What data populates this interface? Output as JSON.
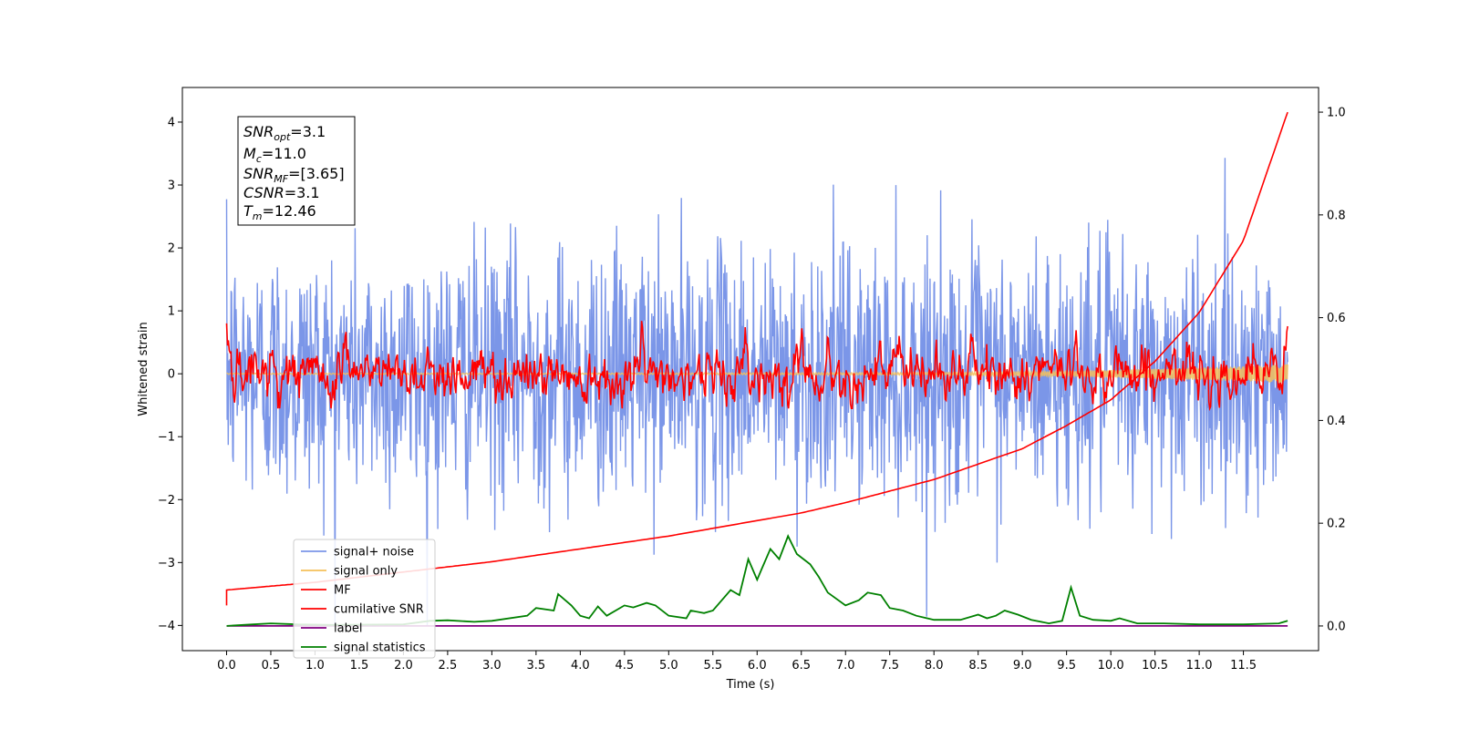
{
  "chart_data": {
    "type": "line",
    "xlabel": "Time (s)",
    "ylabel": "Whitened strain",
    "xlim": [
      -0.5,
      12.35
    ],
    "ylim": [
      -4.4,
      4.55
    ],
    "y2lim": [
      -0.048,
      1.048
    ],
    "x_ticks": [
      "0.0",
      "0.5",
      "1.0",
      "1.5",
      "2.0",
      "2.5",
      "3.0",
      "3.5",
      "4.0",
      "4.5",
      "5.0",
      "5.5",
      "6.0",
      "6.5",
      "7.0",
      "7.5",
      "8.0",
      "8.5",
      "9.0",
      "9.5",
      "10.0",
      "10.5",
      "11.0",
      "11.5"
    ],
    "y_ticks": [
      "4",
      "3",
      "2",
      "1",
      "0",
      "−1",
      "−2",
      "−3",
      "−4"
    ],
    "y2_ticks": [
      "1.0",
      "0.8",
      "0.6",
      "0.4",
      "0.2",
      "0.0"
    ],
    "info_box": {
      "snr_opt": {
        "sym": "SNR",
        "sub": "opt",
        "val": "=3.1"
      },
      "mc": {
        "sym": "M",
        "sub": "c",
        "val": "=11.0"
      },
      "snr_mf": {
        "sym": "SNR",
        "sub": "MF",
        "val": "=[3.65]"
      },
      "csnr": {
        "sym": "CSNR",
        "val": "=3.1"
      },
      "tm": {
        "sym": "T",
        "sub": "m",
        "val": "=12.46"
      }
    },
    "legend": {
      "placement": "lower-left",
      "entries": [
        {
          "label": "signal+ noise",
          "color": "#7b96e8"
        },
        {
          "label": "signal only",
          "color": "#f5c15a"
        },
        {
          "label": "MF",
          "color": "#ff0000"
        },
        {
          "label": "cumilative SNR",
          "color": "#ff0000"
        },
        {
          "label": "label",
          "color": "#800080"
        },
        {
          "label": "signal statistics",
          "color": "#008000"
        }
      ]
    },
    "series": [
      {
        "name": "signal+ noise",
        "axis": "left",
        "color": "#7b96e8",
        "x_range": [
          0,
          12.0
        ],
        "n_points": 1900,
        "noise_std": 1.0
      },
      {
        "name": "signal only",
        "axis": "left",
        "color": "#f5c15a",
        "x": [
          0,
          2,
          4,
          6,
          8,
          9.5,
          10.5,
          11,
          11.5,
          12.0
        ],
        "amplitude": [
          0.01,
          0.01,
          0.01,
          0.015,
          0.02,
          0.04,
          0.08,
          0.1,
          0.12,
          0.15
        ]
      },
      {
        "name": "MF",
        "axis": "left",
        "color": "#ff0000",
        "x_range": [
          0,
          12.0
        ],
        "n_points": 1200,
        "peaks": [
          [
            0,
            0.8
          ],
          [
            0.5,
            0.7
          ],
          [
            1.35,
            1.0
          ],
          [
            2.3,
            0.7
          ],
          [
            4.7,
            0.8
          ],
          [
            6.5,
            1.0
          ],
          [
            7.6,
            0.7
          ],
          [
            8.4,
            0.7
          ],
          [
            9.6,
            0.85
          ],
          [
            10.1,
            0.8
          ],
          [
            11.4,
            0.65
          ],
          [
            12.0,
            0.85
          ]
        ]
      },
      {
        "name": "cumilative SNR",
        "axis": "right",
        "color": "#ff0000",
        "x": [
          0,
          0.0,
          1,
          2,
          3,
          4,
          5,
          6,
          6.5,
          7,
          8,
          9,
          9.5,
          10,
          10.5,
          11,
          11.5,
          12.0
        ],
        "y": [
          0.04,
          0.07,
          0.085,
          0.105,
          0.125,
          0.15,
          0.175,
          0.205,
          0.22,
          0.24,
          0.285,
          0.345,
          0.39,
          0.44,
          0.515,
          0.61,
          0.75,
          1.0
        ]
      },
      {
        "name": "label",
        "axis": "right",
        "color": "#800080",
        "x": [
          0,
          12.0
        ],
        "y": [
          0.0,
          0.0
        ]
      },
      {
        "name": "signal statistics",
        "axis": "right",
        "color": "#008000",
        "x": [
          0,
          0.3,
          0.5,
          0.8,
          1.2,
          2.0,
          2.3,
          2.5,
          2.8,
          3.0,
          3.4,
          3.5,
          3.7,
          3.75,
          3.9,
          4.0,
          4.1,
          4.2,
          4.3,
          4.5,
          4.6,
          4.75,
          4.85,
          5.0,
          5.2,
          5.25,
          5.4,
          5.5,
          5.7,
          5.8,
          5.9,
          6.0,
          6.05,
          6.15,
          6.25,
          6.35,
          6.45,
          6.6,
          6.7,
          6.8,
          7.0,
          7.15,
          7.25,
          7.4,
          7.5,
          7.65,
          7.8,
          8.0,
          8.3,
          8.5,
          8.6,
          8.7,
          8.8,
          8.95,
          9.1,
          9.3,
          9.45,
          9.55,
          9.65,
          9.8,
          10.0,
          10.1,
          10.3,
          10.6,
          11.0,
          11.5,
          11.9,
          12.0
        ],
        "y": [
          0.0,
          0.003,
          0.005,
          0.003,
          0.002,
          0.003,
          0.01,
          0.011,
          0.008,
          0.01,
          0.02,
          0.035,
          0.03,
          0.062,
          0.04,
          0.02,
          0.015,
          0.038,
          0.02,
          0.04,
          0.036,
          0.045,
          0.04,
          0.02,
          0.015,
          0.03,
          0.025,
          0.03,
          0.07,
          0.06,
          0.13,
          0.09,
          0.11,
          0.15,
          0.13,
          0.175,
          0.14,
          0.12,
          0.095,
          0.065,
          0.04,
          0.05,
          0.065,
          0.06,
          0.035,
          0.03,
          0.02,
          0.012,
          0.012,
          0.022,
          0.015,
          0.02,
          0.03,
          0.022,
          0.012,
          0.005,
          0.01,
          0.075,
          0.02,
          0.012,
          0.01,
          0.015,
          0.005,
          0.005,
          0.003,
          0.003,
          0.005,
          0.01
        ]
      }
    ]
  }
}
